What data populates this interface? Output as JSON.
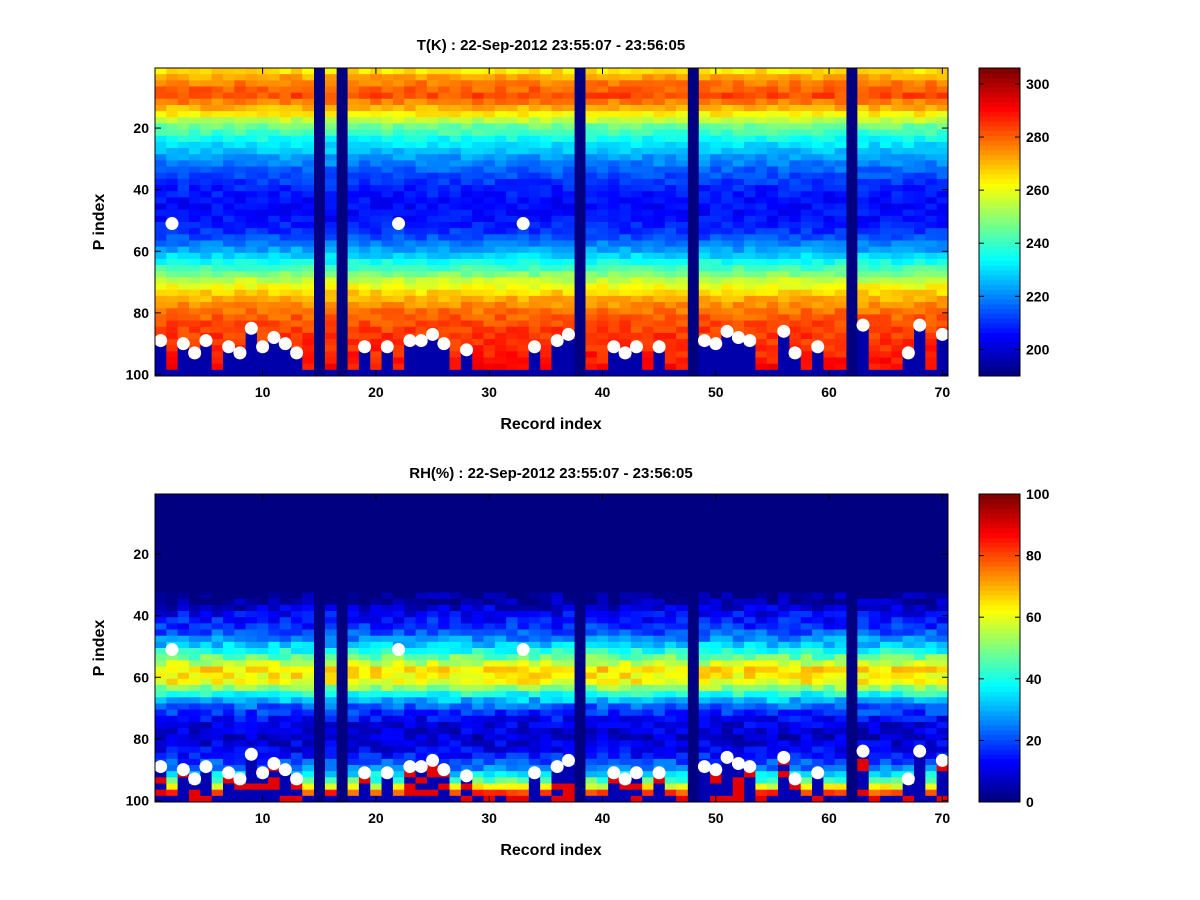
{
  "chart_data": [
    {
      "id": "temperature",
      "type": "heatmap",
      "title": "T(K) : 22-Sep-2012 23:55:07 - 23:56:05",
      "xlabel": "Record index",
      "ylabel": "P index",
      "xlim": [
        0.5,
        70.5
      ],
      "ylim": [
        1,
        100
      ],
      "y_reversed": true,
      "xticks": [
        10,
        20,
        30,
        40,
        50,
        60,
        70
      ],
      "yticks": [
        20,
        40,
        60,
        80,
        100
      ],
      "colormap": "jet",
      "clim": [
        190,
        306
      ],
      "colorbar_ticks": [
        200,
        220,
        240,
        260,
        280,
        300
      ],
      "missing_records": [
        15,
        17,
        38,
        48,
        62
      ],
      "profile_temperature": {
        "p_index": [
          1,
          5,
          10,
          15,
          20,
          25,
          30,
          35,
          40,
          45,
          50,
          55,
          60,
          65,
          70,
          75,
          80,
          85,
          90,
          95,
          98
        ],
        "value": [
          262,
          276,
          283,
          268,
          246,
          232,
          222,
          214,
          208,
          205,
          206,
          211,
          223,
          238,
          256,
          270,
          279,
          284,
          286,
          288,
          290
        ]
      },
      "surface_markers": [
        {
          "record": 1,
          "p_index": 89
        },
        {
          "record": 2,
          "p_index": 51
        },
        {
          "record": 3,
          "p_index": 90
        },
        {
          "record": 4,
          "p_index": 93
        },
        {
          "record": 5,
          "p_index": 89
        },
        {
          "record": 7,
          "p_index": 91
        },
        {
          "record": 8,
          "p_index": 93
        },
        {
          "record": 9,
          "p_index": 85
        },
        {
          "record": 10,
          "p_index": 91
        },
        {
          "record": 11,
          "p_index": 88
        },
        {
          "record": 12,
          "p_index": 90
        },
        {
          "record": 13,
          "p_index": 93
        },
        {
          "record": 19,
          "p_index": 91
        },
        {
          "record": 21,
          "p_index": 91
        },
        {
          "record": 22,
          "p_index": 51
        },
        {
          "record": 23,
          "p_index": 89
        },
        {
          "record": 24,
          "p_index": 89
        },
        {
          "record": 25,
          "p_index": 87
        },
        {
          "record": 26,
          "p_index": 90
        },
        {
          "record": 28,
          "p_index": 92
        },
        {
          "record": 33,
          "p_index": 51
        },
        {
          "record": 34,
          "p_index": 91
        },
        {
          "record": 36,
          "p_index": 89
        },
        {
          "record": 37,
          "p_index": 87
        },
        {
          "record": 41,
          "p_index": 91
        },
        {
          "record": 42,
          "p_index": 93
        },
        {
          "record": 43,
          "p_index": 91
        },
        {
          "record": 45,
          "p_index": 91
        },
        {
          "record": 49,
          "p_index": 89
        },
        {
          "record": 50,
          "p_index": 90
        },
        {
          "record": 51,
          "p_index": 86
        },
        {
          "record": 52,
          "p_index": 88
        },
        {
          "record": 53,
          "p_index": 89
        },
        {
          "record": 56,
          "p_index": 86
        },
        {
          "record": 57,
          "p_index": 93
        },
        {
          "record": 59,
          "p_index": 91
        },
        {
          "record": 63,
          "p_index": 84
        },
        {
          "record": 67,
          "p_index": 93
        },
        {
          "record": 68,
          "p_index": 84
        },
        {
          "record": 70,
          "p_index": 87
        }
      ]
    },
    {
      "id": "humidity",
      "type": "heatmap",
      "title": "RH(%) : 22-Sep-2012 23:55:07 - 23:56:05",
      "xlabel": "Record index",
      "ylabel": "P index",
      "xlim": [
        0.5,
        70.5
      ],
      "ylim": [
        1,
        100
      ],
      "y_reversed": true,
      "xticks": [
        10,
        20,
        30,
        40,
        50,
        60,
        70
      ],
      "yticks": [
        20,
        40,
        60,
        80,
        100
      ],
      "colormap": "jet",
      "clim": [
        0,
        100
      ],
      "colorbar_ticks": [
        0,
        20,
        40,
        60,
        80,
        100
      ],
      "missing_records": [
        15,
        17,
        38,
        48,
        62
      ],
      "profile_humidity": {
        "p_index": [
          1,
          30,
          36,
          40,
          45,
          50,
          55,
          58,
          62,
          66,
          70,
          75,
          80,
          85,
          90,
          95,
          98
        ],
        "value": [
          0,
          0,
          4,
          12,
          18,
          32,
          52,
          65,
          62,
          40,
          22,
          10,
          8,
          12,
          25,
          50,
          80
        ]
      },
      "surface_markers": [
        {
          "record": 1,
          "p_index": 89
        },
        {
          "record": 2,
          "p_index": 51
        },
        {
          "record": 3,
          "p_index": 90
        },
        {
          "record": 4,
          "p_index": 93
        },
        {
          "record": 5,
          "p_index": 89
        },
        {
          "record": 7,
          "p_index": 91
        },
        {
          "record": 8,
          "p_index": 93
        },
        {
          "record": 9,
          "p_index": 85
        },
        {
          "record": 10,
          "p_index": 91
        },
        {
          "record": 11,
          "p_index": 88
        },
        {
          "record": 12,
          "p_index": 90
        },
        {
          "record": 13,
          "p_index": 93
        },
        {
          "record": 19,
          "p_index": 91
        },
        {
          "record": 21,
          "p_index": 91
        },
        {
          "record": 22,
          "p_index": 51
        },
        {
          "record": 23,
          "p_index": 89
        },
        {
          "record": 24,
          "p_index": 89
        },
        {
          "record": 25,
          "p_index": 87
        },
        {
          "record": 26,
          "p_index": 90
        },
        {
          "record": 28,
          "p_index": 92
        },
        {
          "record": 33,
          "p_index": 51
        },
        {
          "record": 34,
          "p_index": 91
        },
        {
          "record": 36,
          "p_index": 89
        },
        {
          "record": 37,
          "p_index": 87
        },
        {
          "record": 41,
          "p_index": 91
        },
        {
          "record": 42,
          "p_index": 93
        },
        {
          "record": 43,
          "p_index": 91
        },
        {
          "record": 45,
          "p_index": 91
        },
        {
          "record": 49,
          "p_index": 89
        },
        {
          "record": 50,
          "p_index": 90
        },
        {
          "record": 51,
          "p_index": 86
        },
        {
          "record": 52,
          "p_index": 88
        },
        {
          "record": 53,
          "p_index": 89
        },
        {
          "record": 56,
          "p_index": 86
        },
        {
          "record": 57,
          "p_index": 93
        },
        {
          "record": 59,
          "p_index": 91
        },
        {
          "record": 63,
          "p_index": 84
        },
        {
          "record": 67,
          "p_index": 93
        },
        {
          "record": 68,
          "p_index": 84
        },
        {
          "record": 70,
          "p_index": 87
        }
      ]
    }
  ]
}
